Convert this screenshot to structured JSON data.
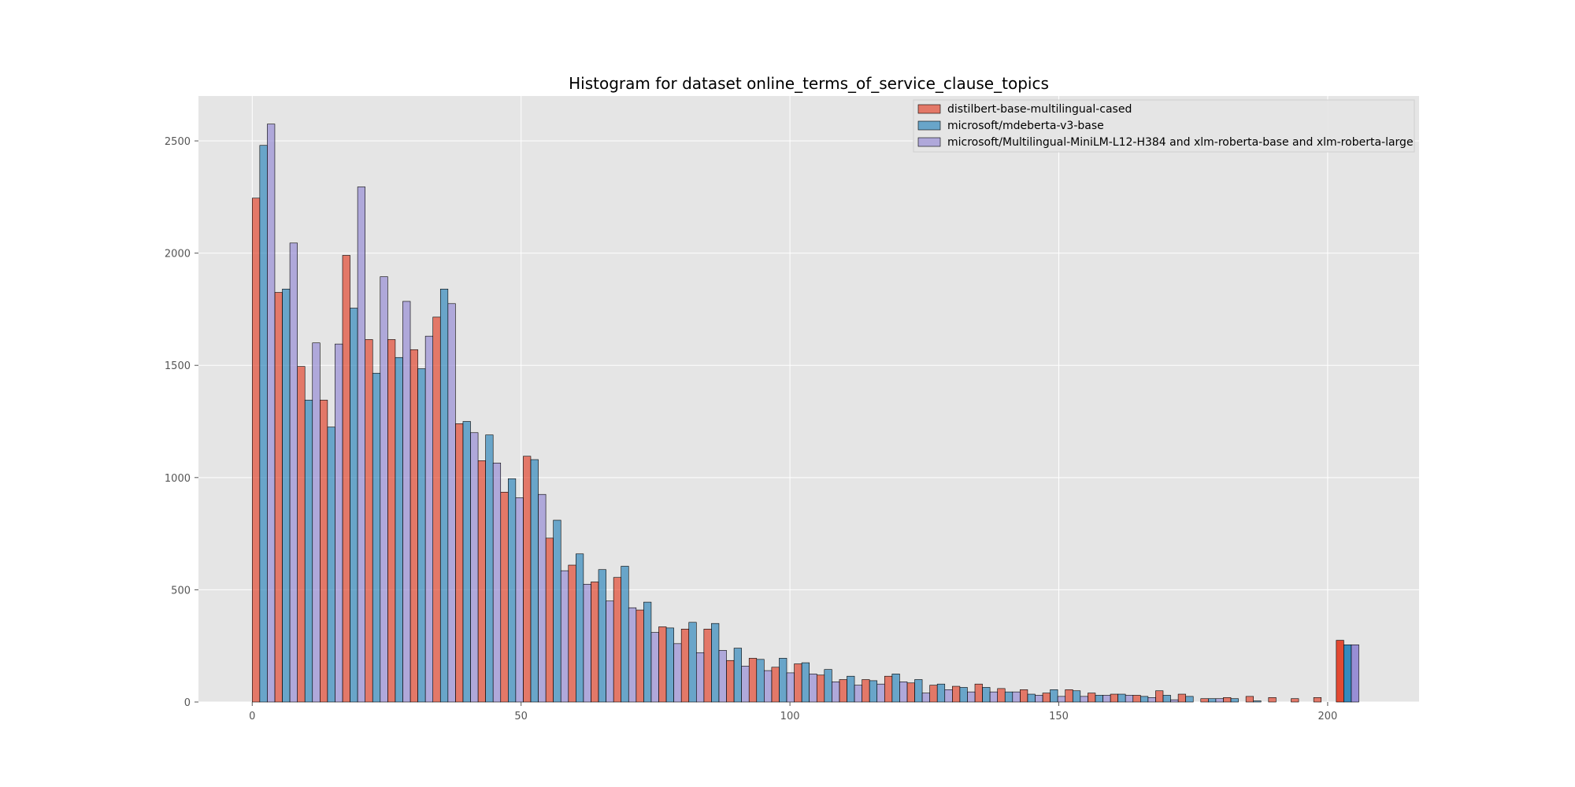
{
  "chart_data": {
    "type": "bar",
    "title": "Histogram for dataset online_terms_of_service_clause_topics",
    "xlabel": "",
    "ylabel": "",
    "xlim": [
      -10,
      217
    ],
    "ylim": [
      0,
      2700
    ],
    "x_ticks": [
      0,
      50,
      100,
      150,
      200
    ],
    "y_ticks": [
      0,
      500,
      1000,
      1500,
      2000,
      2500
    ],
    "grid": true,
    "legend_position": "top-right",
    "bin_width": 4.2,
    "bins_start": 0,
    "series": [
      {
        "name": "distilbert-base-multilingual-cased",
        "color": "#E24A33",
        "values": [
          2245,
          1825,
          1495,
          1345,
          1990,
          1615,
          1615,
          1570,
          1715,
          1240,
          1075,
          935,
          1095,
          730,
          610,
          535,
          555,
          410,
          335,
          325,
          325,
          185,
          195,
          155,
          170,
          120,
          100,
          100,
          115,
          85,
          75,
          70,
          80,
          60,
          55,
          40,
          55,
          40,
          35,
          30,
          50,
          35,
          15,
          20,
          25,
          20,
          15,
          20,
          275
        ]
      },
      {
        "name": "microsoft/mdeberta-v3-base",
        "color": "#348ABD",
        "values": [
          2480,
          1840,
          1345,
          1225,
          1755,
          1465,
          1535,
          1485,
          1840,
          1250,
          1190,
          995,
          1080,
          810,
          660,
          590,
          605,
          445,
          330,
          355,
          350,
          240,
          190,
          195,
          175,
          145,
          115,
          95,
          125,
          100,
          80,
          65,
          65,
          45,
          35,
          55,
          50,
          30,
          35,
          25,
          30,
          25,
          15,
          15,
          5,
          0,
          0,
          0,
          255
        ]
      },
      {
        "name": "microsoft/Multilingual-MiniLM-L12-H384 and xlm-roberta-base and xlm-roberta-large",
        "color": "#988ED5",
        "values": [
          2575,
          2045,
          1600,
          1595,
          2295,
          1895,
          1785,
          1630,
          1775,
          1200,
          1065,
          910,
          925,
          585,
          525,
          450,
          420,
          310,
          260,
          220,
          230,
          160,
          140,
          130,
          125,
          90,
          75,
          80,
          90,
          40,
          55,
          45,
          45,
          45,
          30,
          25,
          25,
          30,
          30,
          20,
          10,
          0,
          15,
          0,
          0,
          0,
          0,
          0,
          255
        ]
      }
    ]
  }
}
